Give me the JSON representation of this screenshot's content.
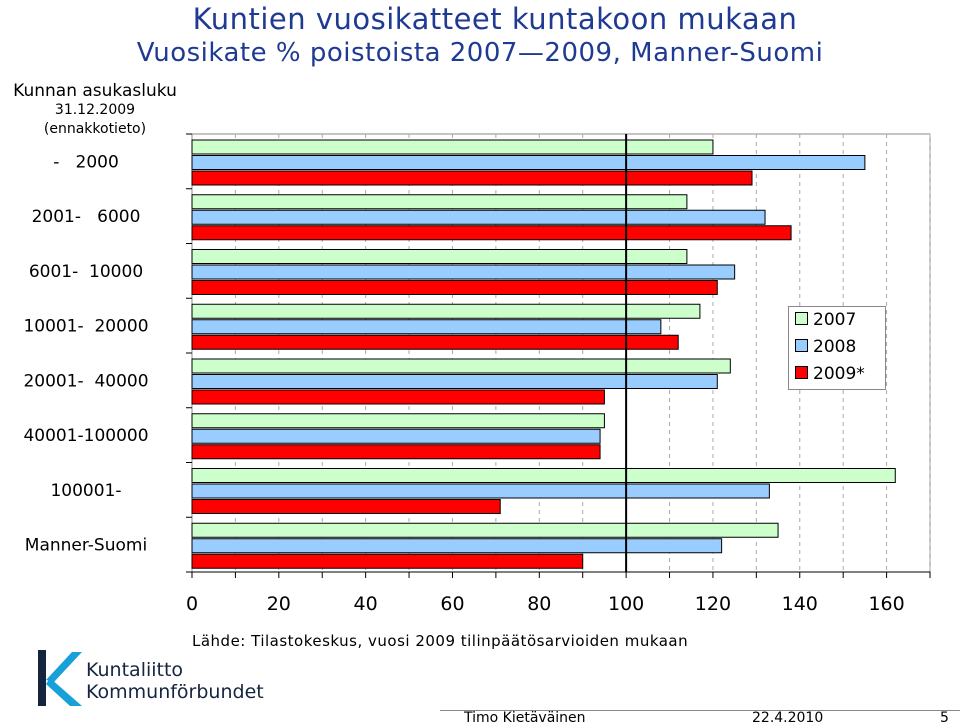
{
  "header": {
    "title": "Kuntien vuosikatteet kuntakoon mukaan",
    "subtitle": "Vuosikate % poistoista 2007—2009, Manner-Suomi"
  },
  "yaxis_heading": {
    "line1": "Kunnan asukasluku",
    "line2": "31.12.2009",
    "line3": "(ennakkotieto)"
  },
  "chart_data": {
    "type": "bar",
    "orientation": "horizontal",
    "title": "Vuosikate % poistoista 2007—2009, Manner-Suomi",
    "categories": [
      "-   2000",
      "2001-   6000",
      "6001-  10000",
      "10001-  20000",
      "20001-  40000",
      "40001-100000",
      "100001-",
      "Manner-Suomi"
    ],
    "series": [
      {
        "name": "2007",
        "color": "#ccffcc",
        "values": [
          120,
          114,
          114,
          117,
          124,
          95,
          162,
          135
        ]
      },
      {
        "name": "2008",
        "color": "#99ccff",
        "values": [
          155,
          132,
          125,
          108,
          121,
          94,
          133,
          122
        ]
      },
      {
        "name": "2009*",
        "color": "#ff0000",
        "values": [
          129,
          138,
          121,
          112,
          95,
          94,
          71,
          90
        ]
      }
    ],
    "xlim": [
      0,
      170
    ],
    "xticks": [
      "0",
      "20",
      "40",
      "60",
      "80",
      "100",
      "120",
      "140",
      "160"
    ],
    "reference_line": 100,
    "grid": "vertical dashed",
    "legend_position": "right"
  },
  "source_note": "Lähde: Tilastokeskus, vuosi 2009 tilinpäätösarvioiden mukaan",
  "logo": {
    "line1": "Kuntaliitto",
    "line2": "Kommunförbundet",
    "color": "#16253f",
    "accent": "#1aa0d8"
  },
  "footer": {
    "author": "Timo Kietäväinen",
    "date": "22.4.2010",
    "page": "5"
  }
}
